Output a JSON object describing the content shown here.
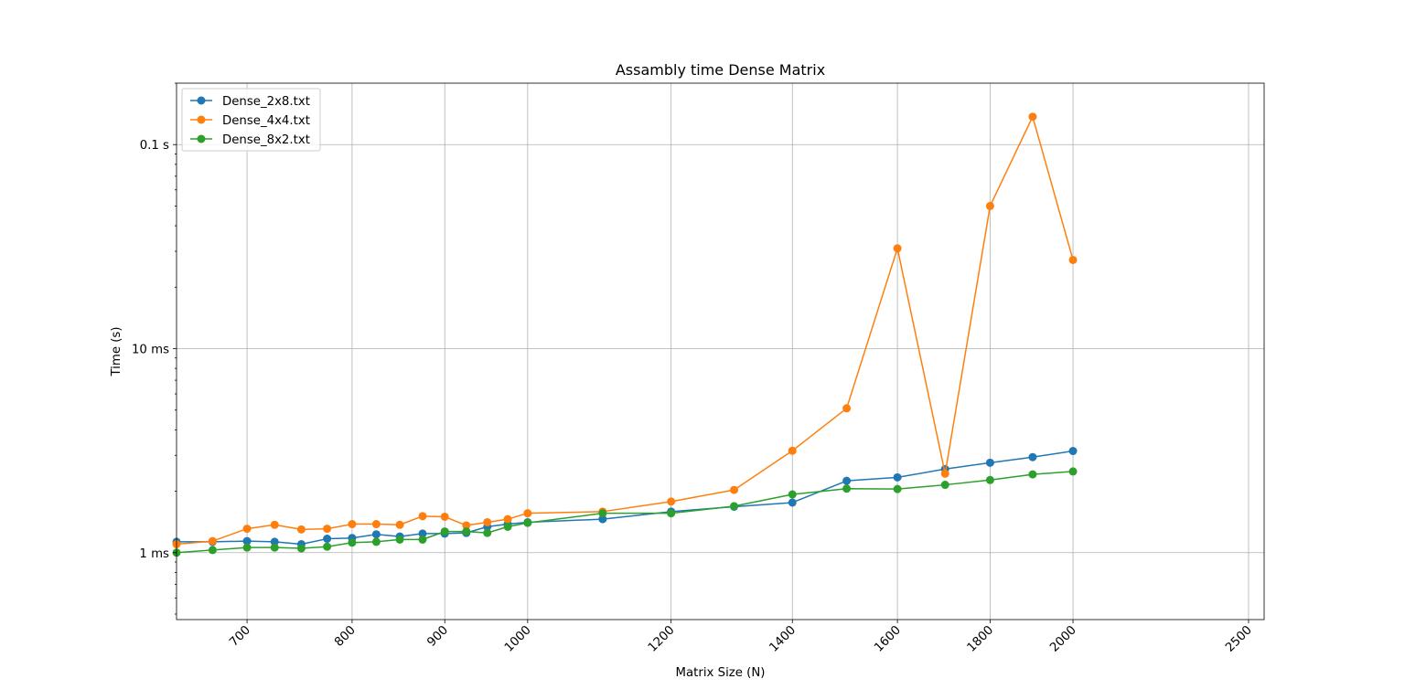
{
  "chart_data": {
    "type": "line",
    "title": "Assambly time Dense Matrix",
    "xlabel": "Matrix Size (N)",
    "ylabel": "Time (s)",
    "xscale": "log",
    "yscale": "log",
    "xlim": [
      640,
      2550
    ],
    "ylim": [
      0.00047,
      0.2
    ],
    "grid": true,
    "legend_position": "upper left",
    "x_ticks": [
      700,
      800,
      900,
      1000,
      1200,
      1400,
      1600,
      1800,
      2000,
      2500
    ],
    "x_tick_labels": [
      "700",
      "800",
      "900",
      "1000",
      "1200",
      "1400",
      "1600",
      "1800",
      "2000",
      "2500"
    ],
    "x_tick_rotation": 45,
    "y_ticks": [
      0.001,
      0.01,
      0.1
    ],
    "y_tick_labels": [
      "1 ms",
      "10 ms",
      "0.1 s"
    ],
    "series": [
      {
        "name": "Dense_2x8.txt",
        "color": "#1f77b4",
        "x": [
          640,
          670,
          700,
          725,
          750,
          775,
          800,
          825,
          850,
          875,
          900,
          925,
          950,
          975,
          1000,
          1100,
          1200,
          1300,
          1400,
          1500,
          1600,
          1700,
          1800,
          1900,
          2000
        ],
        "y": [
          0.00113,
          0.00113,
          0.00114,
          0.00113,
          0.0011,
          0.00117,
          0.00118,
          0.00123,
          0.0012,
          0.00124,
          0.00124,
          0.00125,
          0.00134,
          0.00138,
          0.00141,
          0.00146,
          0.00159,
          0.00168,
          0.00176,
          0.00225,
          0.00234,
          0.00257,
          0.00276,
          0.00294,
          0.00315
        ]
      },
      {
        "name": "Dense_4x4.txt",
        "color": "#ff7f0e",
        "x": [
          640,
          670,
          700,
          725,
          750,
          775,
          800,
          825,
          850,
          875,
          900,
          925,
          950,
          975,
          1000,
          1100,
          1200,
          1300,
          1400,
          1500,
          1600,
          1700,
          1800,
          1900,
          2000
        ],
        "y": [
          0.0011,
          0.00114,
          0.00131,
          0.00137,
          0.0013,
          0.00131,
          0.00138,
          0.00138,
          0.00137,
          0.00151,
          0.0015,
          0.00136,
          0.00141,
          0.00146,
          0.00156,
          0.00159,
          0.00178,
          0.00203,
          0.00316,
          0.0051,
          0.031,
          0.00244,
          0.05,
          0.137,
          0.0272
        ]
      },
      {
        "name": "Dense_8x2.txt",
        "color": "#2ca02c",
        "x": [
          640,
          670,
          700,
          725,
          750,
          775,
          800,
          825,
          850,
          875,
          900,
          925,
          950,
          975,
          1000,
          1100,
          1200,
          1300,
          1400,
          1500,
          1600,
          1700,
          1800,
          1900,
          2000
        ],
        "y": [
          0.001,
          0.00103,
          0.00106,
          0.00106,
          0.00105,
          0.00107,
          0.00112,
          0.00113,
          0.00116,
          0.00116,
          0.00127,
          0.00127,
          0.00125,
          0.00134,
          0.0014,
          0.00156,
          0.00156,
          0.00169,
          0.00193,
          0.00206,
          0.00205,
          0.00215,
          0.00227,
          0.00242,
          0.0025
        ]
      }
    ]
  }
}
